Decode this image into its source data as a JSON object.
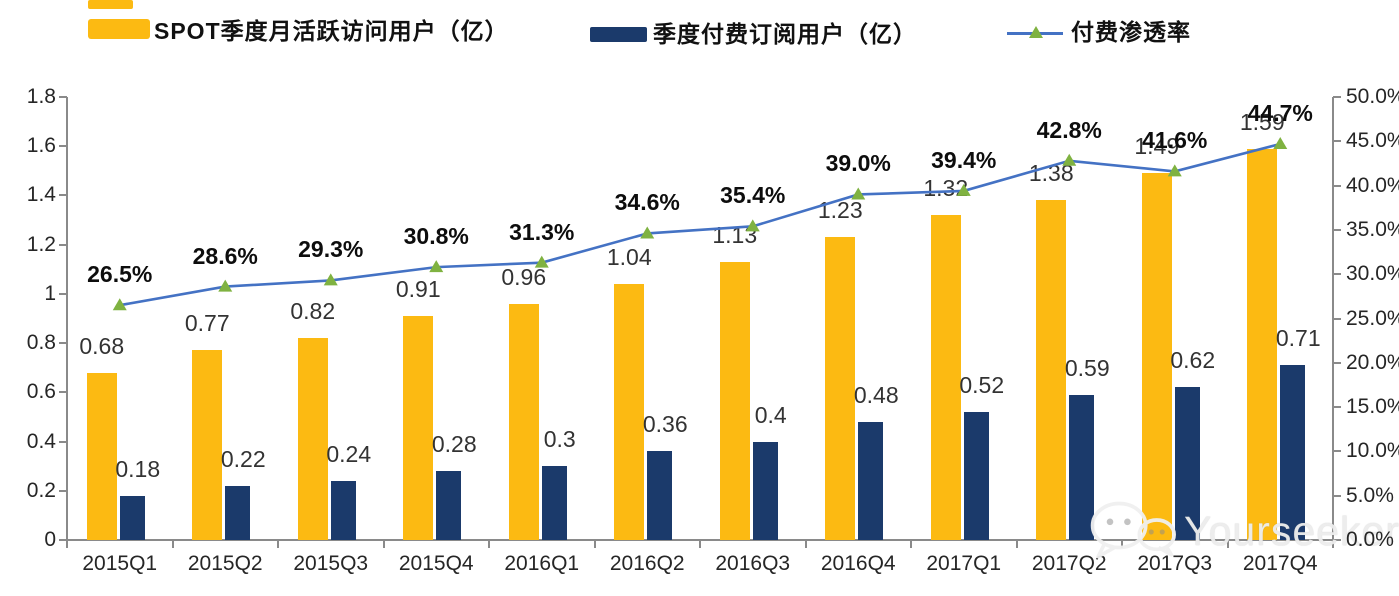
{
  "legend": [
    {
      "label": "SPOT季度月活跃访问用户（亿）",
      "swatch_color": "#FCBA12",
      "type": "bar"
    },
    {
      "label": "季度付费订阅用户（亿）",
      "swatch_color": "#1B3A6B",
      "type": "bar"
    },
    {
      "label": "付费渗透率",
      "line_color": "#4472C4",
      "marker_color": "#7FB241",
      "type": "line"
    }
  ],
  "watermark": {
    "text": "Yourseeker",
    "icon": "wechat-icon"
  },
  "colors": {
    "mau_bar": "#FCBA12",
    "subs_bar": "#1B3A6B",
    "line": "#4472C4",
    "marker": "#7FB241",
    "axis": "#8a8a8a"
  },
  "chart_data": {
    "type": "bar",
    "subtype": "grouped-bars-with-line",
    "categories": [
      "2015Q1",
      "2015Q2",
      "2015Q3",
      "2015Q4",
      "2016Q1",
      "2016Q2",
      "2016Q3",
      "2016Q4",
      "2017Q1",
      "2017Q2",
      "2017Q3",
      "2017Q4"
    ],
    "series": [
      {
        "name": "SPOT季度月活跃访问用户（亿）",
        "type": "bar",
        "axis": "left",
        "color": "#FCBA12",
        "values": [
          0.68,
          0.77,
          0.82,
          0.91,
          0.96,
          1.04,
          1.13,
          1.23,
          1.32,
          1.38,
          1.49,
          1.59
        ],
        "labels": [
          "0.68",
          "0.77",
          "0.82",
          "0.91",
          "0.96",
          "1.04",
          "1.13",
          "1.23",
          "1.32",
          "1.38",
          "1.49",
          "1.59"
        ]
      },
      {
        "name": "季度付费订阅用户（亿）",
        "type": "bar",
        "axis": "left",
        "color": "#1B3A6B",
        "values": [
          0.18,
          0.22,
          0.24,
          0.28,
          0.3,
          0.36,
          0.4,
          0.48,
          0.52,
          0.59,
          0.62,
          0.71
        ],
        "labels": [
          "0.18",
          "0.22",
          "0.24",
          "0.28",
          "0.3",
          "0.36",
          "0.4",
          "0.48",
          "0.52",
          "0.59",
          "0.62",
          "0.71"
        ]
      },
      {
        "name": "付费渗透率",
        "type": "line",
        "axis": "right",
        "color": "#4472C4",
        "marker": "triangle",
        "marker_color": "#7FB241",
        "values": [
          26.5,
          28.6,
          29.3,
          30.8,
          31.3,
          34.6,
          35.4,
          39.0,
          39.4,
          42.8,
          41.6,
          44.7
        ],
        "labels": [
          "26.5%",
          "28.6%",
          "29.3%",
          "30.8%",
          "31.3%",
          "34.6%",
          "35.4%",
          "39.0%",
          "39.4%",
          "42.8%",
          "41.6%",
          "44.7%"
        ]
      }
    ],
    "left_axis": {
      "min": 0,
      "max": 1.8,
      "step": 0.2,
      "tick_labels": [
        "0",
        "0.2",
        "0.4",
        "0.6",
        "0.8",
        "1",
        "1.2",
        "1.4",
        "1.6",
        "1.8"
      ]
    },
    "right_axis": {
      "min": 0,
      "max": 50,
      "step": 5,
      "tick_labels": [
        "0.0%",
        "5.0%",
        "10.0%",
        "15.0%",
        "20.0%",
        "25.0%",
        "30.0%",
        "35.0%",
        "40.0%",
        "45.0%",
        "50.0%"
      ]
    },
    "grid": false,
    "legend_position": "top",
    "title": ""
  }
}
